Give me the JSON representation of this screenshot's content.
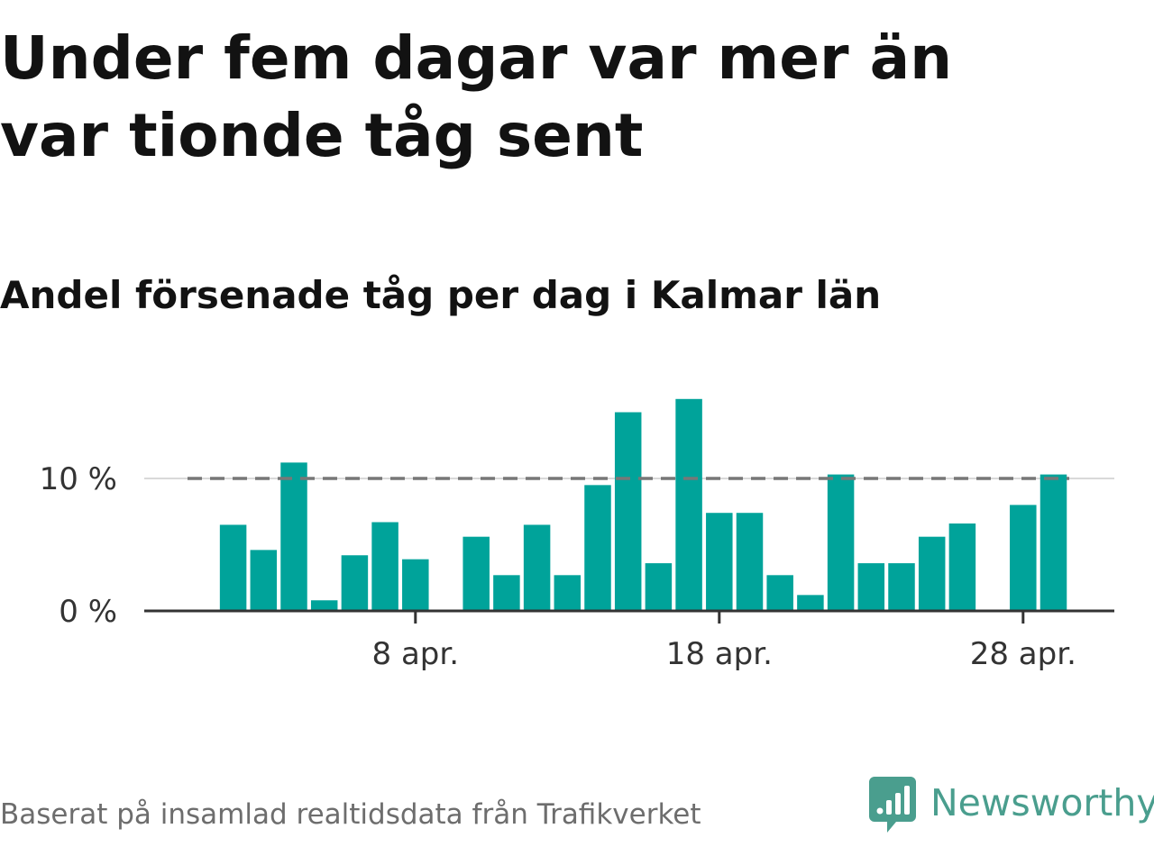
{
  "title": "Under fem dagar var mer än var tionde tåg sent",
  "subtitle": "Andel försenade tåg per dag i Kalmar län",
  "source": "Baserat på insamlad realtidsdata från Trafikverket",
  "brand": {
    "name": "Newsworthy",
    "icon": "newsworthy-logo-icon",
    "color": "#4a9e8e"
  },
  "colors": {
    "bar": "#00a39a",
    "reference_line": "#777777",
    "grid": "#d9d9d9",
    "axis": "#333333"
  },
  "chart_data": {
    "type": "bar",
    "title": "Under fem dagar var mer än var tionde tåg sent",
    "subtitle": "Andel försenade tåg per dag i Kalmar län",
    "xlabel": "",
    "ylabel": "",
    "x_unit": "day of April",
    "x": [
      1,
      2,
      3,
      4,
      5,
      6,
      7,
      8,
      9,
      10,
      11,
      12,
      13,
      14,
      15,
      16,
      17,
      18,
      19,
      20,
      21,
      22,
      23,
      24,
      25,
      26,
      27,
      28,
      29,
      30
    ],
    "values": [
      null,
      6.5,
      4.6,
      11.2,
      0.8,
      4.2,
      6.7,
      3.9,
      null,
      5.6,
      2.7,
      6.5,
      2.7,
      9.5,
      15.0,
      3.6,
      16.0,
      7.4,
      7.4,
      2.7,
      1.2,
      10.3,
      3.6,
      3.6,
      5.6,
      6.6,
      null,
      8.0,
      10.3,
      null
    ],
    "x_ticks": [
      {
        "x": 8,
        "label": "8 apr."
      },
      {
        "x": 18,
        "label": "18 apr."
      },
      {
        "x": 28,
        "label": "28 apr."
      }
    ],
    "y_ticks": [
      {
        "value": 0,
        "label": "0 %"
      },
      {
        "value": 10,
        "label": "10 %"
      }
    ],
    "ylim": [
      0,
      17
    ],
    "reference_line": {
      "value": 10,
      "style": "dashed"
    },
    "grid": true,
    "legend": "none"
  }
}
